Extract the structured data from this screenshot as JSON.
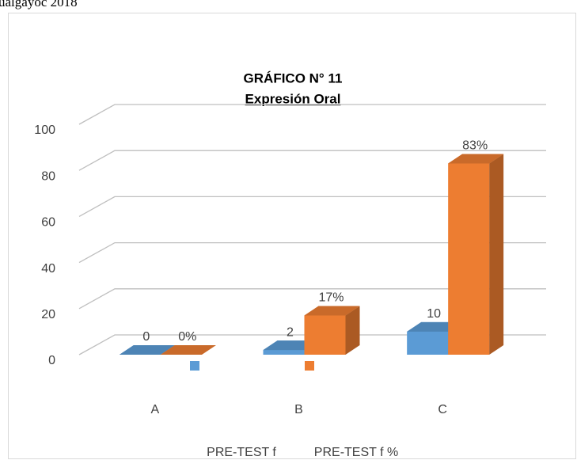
{
  "header_text": "ualgayoc 2018",
  "chart_data": {
    "type": "bar3d",
    "title": "GRÁFICO N° 11",
    "subtitle": "Expresión Oral",
    "categories": [
      "A",
      "B",
      "C"
    ],
    "series": [
      {
        "name": "PRE-TEST f",
        "color": "#5b9bd5",
        "values": [
          0,
          2,
          10
        ]
      },
      {
        "name": "PRE-TEST f %",
        "color": "#ed7d31",
        "values": [
          0,
          17,
          83
        ],
        "value_labels": [
          "0%",
          "17%",
          "83%"
        ]
      }
    ],
    "ylim": [
      0,
      100
    ],
    "yticks": [
      0,
      20,
      40,
      60,
      80,
      100
    ],
    "grid": true,
    "legend": "bottom"
  }
}
